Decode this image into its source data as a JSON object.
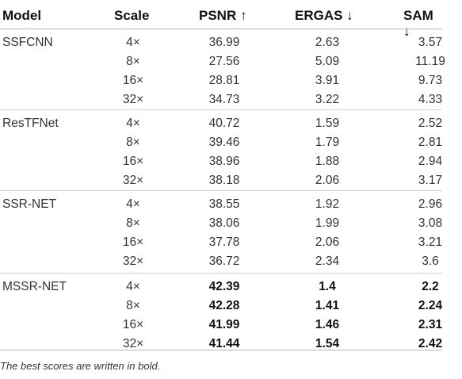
{
  "header": {
    "model": "Model",
    "scale": "Scale",
    "psnr": "PSNR ↑",
    "ergas": "ERGAS ↓",
    "sam": "SAM ↓"
  },
  "groups": [
    {
      "model": "SSFCNN",
      "best": false,
      "rows": [
        {
          "scale": "4×",
          "psnr": "36.99",
          "ergas": "2.63",
          "sam": "3.57"
        },
        {
          "scale": "8×",
          "psnr": "27.56",
          "ergas": "5.09",
          "sam": "11.19"
        },
        {
          "scale": "16×",
          "psnr": "28.81",
          "ergas": "3.91",
          "sam": "9.73"
        },
        {
          "scale": "32×",
          "psnr": "34.73",
          "ergas": "3.22",
          "sam": "4.33"
        }
      ]
    },
    {
      "model": "ResTFNet",
      "best": false,
      "rows": [
        {
          "scale": "4×",
          "psnr": "40.72",
          "ergas": "1.59",
          "sam": "2.52"
        },
        {
          "scale": "8×",
          "psnr": "39.46",
          "ergas": "1.79",
          "sam": "2.81"
        },
        {
          "scale": "16×",
          "psnr": "38.96",
          "ergas": "1.88",
          "sam": "2.94"
        },
        {
          "scale": "32×",
          "psnr": "38.18",
          "ergas": "2.06",
          "sam": "3.17"
        }
      ]
    },
    {
      "model": "SSR-NET",
      "best": false,
      "rows": [
        {
          "scale": "4×",
          "psnr": "38.55",
          "ergas": "1.92",
          "sam": "2.96"
        },
        {
          "scale": "8×",
          "psnr": "38.06",
          "ergas": "1.99",
          "sam": "3.08"
        },
        {
          "scale": "16×",
          "psnr": "37.78",
          "ergas": "2.06",
          "sam": "3.21"
        },
        {
          "scale": "32×",
          "psnr": "36.72",
          "ergas": "2.34",
          "sam": "3.6"
        }
      ]
    },
    {
      "model": "MSSR-NET",
      "best": true,
      "rows": [
        {
          "scale": "4×",
          "psnr": "42.39",
          "ergas": "1.4",
          "sam": "2.2"
        },
        {
          "scale": "8×",
          "psnr": "42.28",
          "ergas": "1.41",
          "sam": "2.24"
        },
        {
          "scale": "16×",
          "psnr": "41.99",
          "ergas": "1.46",
          "sam": "2.31"
        },
        {
          "scale": "32×",
          "psnr": "41.44",
          "ergas": "1.54",
          "sam": "2.42"
        }
      ]
    }
  ],
  "caption": "The best scores are written in bold."
}
